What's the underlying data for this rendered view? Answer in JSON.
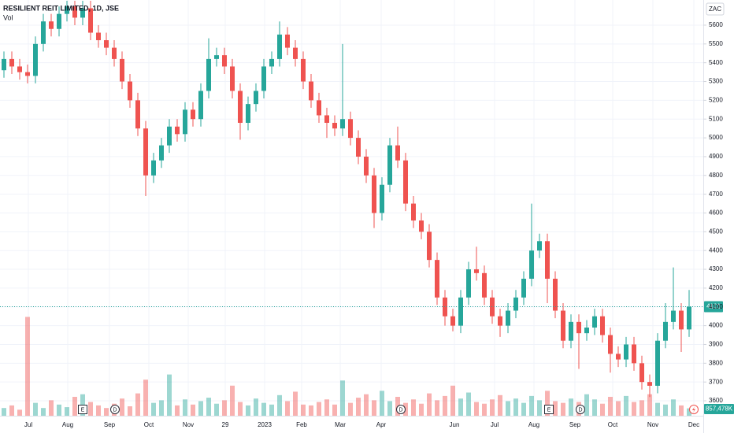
{
  "chart_data": {
    "type": "candlestick",
    "title": "RESILIENT REIT LIMITED, 1D, JSE",
    "volume_title": "Vol",
    "currency": "ZAC",
    "open": [
      5360,
      5420,
      5380,
      5350,
      5330,
      5500,
      5620,
      5580,
      5660,
      5700,
      5640,
      5690,
      5560,
      5520,
      5480,
      5420,
      5300,
      5200,
      5050,
      4800,
      4880,
      4960,
      5060,
      5020,
      5150,
      5100,
      5250,
      5420,
      5440,
      5380,
      5250,
      5080,
      5180,
      5250,
      5380,
      5420,
      5550,
      5480,
      5420,
      5300,
      5200,
      5120,
      5080,
      5050,
      5100,
      5000,
      4900,
      4800,
      4600,
      4750,
      4960,
      4880,
      4650,
      4560,
      4500,
      4350,
      4150,
      4050,
      4000,
      4150,
      4300,
      4280,
      4150,
      4050,
      4000,
      4080,
      4150,
      4250,
      4400,
      4450,
      4250,
      4080,
      3920,
      4020,
      3960,
      3990,
      4050,
      3950,
      3850,
      3820,
      3900,
      3800,
      3700,
      3680,
      3920,
      4020,
      4080,
      3980
    ],
    "high": [
      5460,
      5460,
      5420,
      5390,
      5540,
      5660,
      5660,
      5700,
      5730,
      5730,
      5730,
      5730,
      5600,
      5560,
      5520,
      5460,
      5340,
      5240,
      5090,
      4920,
      5000,
      5100,
      5100,
      5190,
      5190,
      5290,
      5530,
      5480,
      5480,
      5420,
      5290,
      5220,
      5290,
      5420,
      5460,
      5620,
      5590,
      5520,
      5460,
      5340,
      5240,
      5160,
      5120,
      5500,
      5140,
      5040,
      4940,
      4840,
      4790,
      5000,
      5060,
      4920,
      4690,
      4600,
      4540,
      4390,
      4190,
      4090,
      4190,
      4340,
      4420,
      4320,
      4190,
      4090,
      4120,
      4190,
      4290,
      4650,
      4490,
      4490,
      4290,
      4120,
      4060,
      4060,
      4030,
      4090,
      4090,
      3990,
      3890,
      3940,
      3940,
      3840,
      3740,
      3960,
      4120,
      4310,
      4120,
      4190
    ],
    "low": [
      5320,
      5340,
      5310,
      5290,
      5290,
      5460,
      5540,
      5540,
      5620,
      5600,
      5600,
      5520,
      5480,
      5440,
      5380,
      5260,
      5160,
      5010,
      4690,
      4760,
      4840,
      4920,
      4980,
      4980,
      5060,
      5060,
      5210,
      5380,
      5340,
      5210,
      4990,
      5040,
      5140,
      5210,
      5340,
      5380,
      5440,
      5380,
      5260,
      5160,
      5080,
      5000,
      5010,
      5010,
      4960,
      4860,
      4760,
      4520,
      4560,
      4710,
      4840,
      4610,
      4520,
      4460,
      4310,
      4110,
      4000,
      3970,
      3960,
      4110,
      4240,
      4110,
      4010,
      3940,
      3960,
      4040,
      4110,
      4210,
      4360,
      4120,
      4040,
      3880,
      3880,
      3770,
      3920,
      3950,
      3910,
      3750,
      3780,
      3780,
      3760,
      3660,
      3620,
      3640,
      3880,
      3980,
      3860,
      3940
    ],
    "close": [
      5420,
      5380,
      5350,
      5330,
      5500,
      5620,
      5580,
      5660,
      5700,
      5640,
      5690,
      5560,
      5520,
      5480,
      5420,
      5300,
      5200,
      5050,
      4800,
      4880,
      4960,
      5060,
      5020,
      5150,
      5100,
      5250,
      5420,
      5440,
      5380,
      5250,
      5080,
      5180,
      5250,
      5380,
      5420,
      5550,
      5480,
      5420,
      5300,
      5200,
      5120,
      5080,
      5050,
      5100,
      5000,
      4900,
      4800,
      4600,
      4750,
      4960,
      4880,
      4650,
      4560,
      4500,
      4350,
      4150,
      4050,
      4000,
      4150,
      4300,
      4280,
      4150,
      4050,
      4000,
      4080,
      4150,
      4250,
      4400,
      4450,
      4250,
      4080,
      3920,
      4020,
      3960,
      3990,
      4050,
      3950,
      3850,
      3820,
      3900,
      3800,
      3700,
      3680,
      3920,
      4020,
      4080,
      3980,
      4101
    ],
    "volume": [
      900000,
      1200000,
      700000,
      11500000,
      1500000,
      900000,
      1800000,
      1300000,
      1000000,
      2200000,
      2500000,
      1600000,
      1200000,
      900000,
      1400000,
      2000000,
      1100000,
      2600000,
      4200000,
      1500000,
      1800000,
      4800000,
      1200000,
      1900000,
      1300000,
      1700000,
      2100000,
      1400000,
      1800000,
      3500000,
      1600000,
      1200000,
      2000000,
      1500000,
      1300000,
      2400000,
      1700000,
      2800000,
      1300000,
      1200000,
      1600000,
      1900000,
      1300000,
      4100000,
      1500000,
      2100000,
      2500000,
      1800000,
      2900000,
      1700000,
      2200000,
      1500000,
      1900000,
      1400000,
      2600000,
      1800000,
      2300000,
      3500000,
      2000000,
      2700000,
      1600000,
      1400000,
      1900000,
      2400000,
      1700000,
      2000000,
      1500000,
      2300000,
      1800000,
      2900000,
      1700000,
      1500000,
      2000000,
      1600000,
      2500000,
      1900000,
      1400000,
      2200000,
      1700000,
      2300000,
      1600000,
      1800000,
      2500000,
      1500000,
      1300000,
      1900000,
      1200000,
      857478
    ],
    "xlim": [
      -0.5,
      88.8
    ],
    "ylim": [
      3554,
      5734
    ],
    "vlim": [
      0,
      12000000
    ],
    "yticks": [
      3600,
      3700,
      3800,
      3900,
      4000,
      4100,
      4200,
      4300,
      4400,
      4500,
      4600,
      4700,
      4800,
      4900,
      5000,
      5100,
      5200,
      5300,
      5400,
      5500,
      5600
    ],
    "xticks": [
      {
        "value": 3.1,
        "label": "Jul"
      },
      {
        "value": 8.1,
        "label": "Aug"
      },
      {
        "value": 13.4,
        "label": "Sep"
      },
      {
        "value": 18.4,
        "label": "Oct"
      },
      {
        "value": 23.4,
        "label": "Nov"
      },
      {
        "value": 28.1,
        "label": "29"
      },
      {
        "value": 33.1,
        "label": "2023"
      },
      {
        "value": 37.8,
        "label": "Feb"
      },
      {
        "value": 42.7,
        "label": "Mar"
      },
      {
        "value": 47.9,
        "label": "Apr"
      },
      {
        "value": 57.2,
        "label": "Jun"
      },
      {
        "value": 62.3,
        "label": "Jul"
      },
      {
        "value": 67.3,
        "label": "Aug"
      },
      {
        "value": 72.5,
        "label": "Sep"
      },
      {
        "value": 77.3,
        "label": "Oct"
      },
      {
        "value": 82.4,
        "label": "Nov"
      },
      {
        "value": 87.6,
        "label": "Dec"
      }
    ],
    "events": [
      {
        "x": 10,
        "label": "E"
      },
      {
        "x": 14.1,
        "label": "D"
      },
      {
        "x": 50.4,
        "label": "D"
      },
      {
        "x": 69.2,
        "label": "E"
      },
      {
        "x": 73.2,
        "label": "D"
      }
    ],
    "last_price": 4101,
    "last_volume_label": "857,478K",
    "up_color": "#26a69a",
    "down_color": "#ef5350",
    "grid": true
  }
}
